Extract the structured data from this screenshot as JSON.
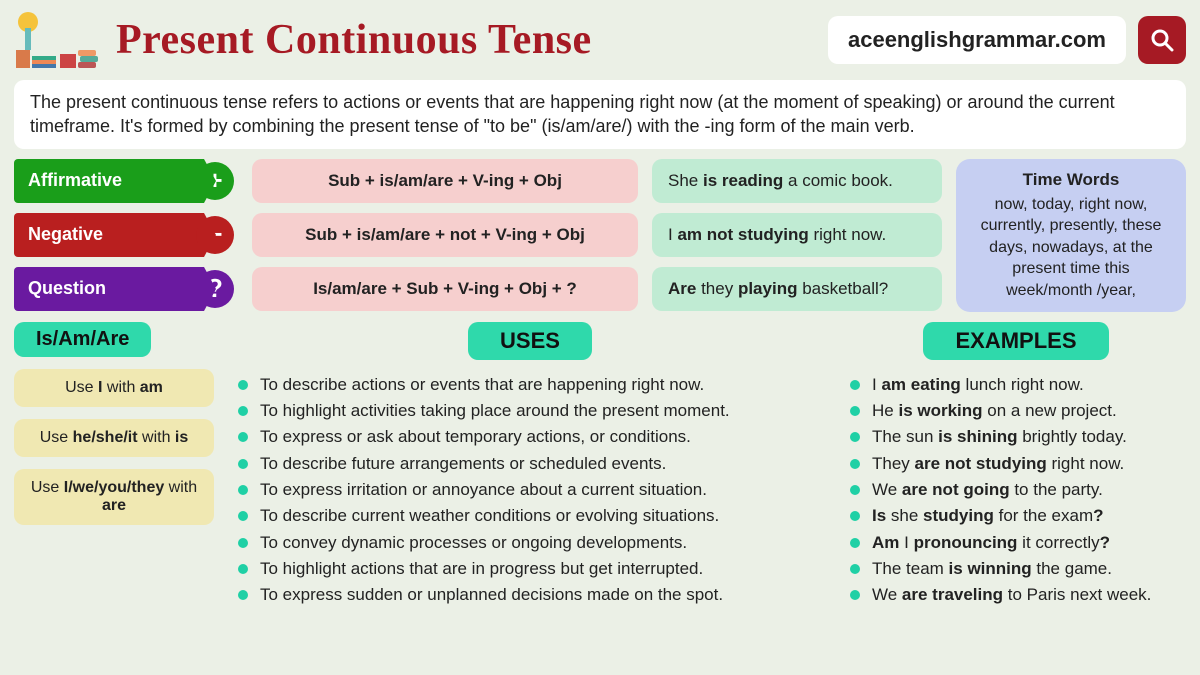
{
  "header": {
    "title": "Present Continuous Tense",
    "title_color": "#a61a24",
    "site": "aceenglishgrammar.com",
    "search_bg": "#a61a24"
  },
  "description": "The present continuous tense refers to actions or events that are happening right now (at the moment of speaking) or around the current timeframe. It's formed by combining the present tense of \"to be\" (is/am/are/) with the -ing form of the main verb.",
  "rows": {
    "affirmative": {
      "label": "Affirmative",
      "symbol": "+",
      "color": "#1a9e1a",
      "formula": "Sub + is/am/are + V-ing + Obj",
      "example_pre": "She ",
      "example_bold": "is reading",
      "example_post": " a comic book."
    },
    "negative": {
      "label": "Negative",
      "symbol": "−",
      "color": "#b91f1f",
      "formula": "Sub + is/am/are + not + V-ing + Obj",
      "example_pre": "I ",
      "example_bold": "am not studying",
      "example_post": " right now."
    },
    "question": {
      "label": "Question",
      "symbol": "?",
      "color": "#6a1aa0",
      "formula": "Is/am/are + Sub + V-ing + Obj + ?",
      "example_pre": "",
      "example_bold1": "Are",
      "example_mid": " they ",
      "example_bold2": "playing",
      "example_post": " basketball?"
    }
  },
  "timewords": {
    "title": "Time Words",
    "body": "now, today, right now, currently, presently, these days, nowadays, at the present time this week/month /year,"
  },
  "pills": {
    "isamare": "Is/Am/Are",
    "uses": "USES",
    "examples": "EXAMPLES"
  },
  "usage": {
    "u1_a": "Use ",
    "u1_b": "I",
    "u1_c": " with ",
    "u1_d": "am",
    "u2_a": "Use ",
    "u2_b": "he/she/it",
    "u2_c": " with ",
    "u2_d": "is",
    "u3_a": "Use ",
    "u3_b": "I/we/you/they",
    "u3_c": " with ",
    "u3_d": "are"
  },
  "uses": [
    "To describe actions or events that are happening right now.",
    "To highlight activities taking place around the present moment.",
    "To express or ask about temporary actions, or conditions.",
    "To describe future arrangements or scheduled events.",
    "To express irritation or annoyance about a current situation.",
    "To describe current weather conditions or evolving situations.",
    "To convey dynamic processes or ongoing developments.",
    "To highlight actions that are in progress but get interrupted.",
    "To express sudden or unplanned decisions made on the spot."
  ],
  "examples": [
    {
      "pre": "I ",
      "b": "am eating",
      "post": " lunch right now."
    },
    {
      "pre": "He ",
      "b": "is working",
      "post": " on a new project."
    },
    {
      "pre": "The sun ",
      "b": "is shining",
      "post": " brightly today."
    },
    {
      "pre": "They ",
      "b": "are not studying",
      "post": " right now."
    },
    {
      "pre": "We ",
      "b": "are not going",
      "post": " to the party."
    },
    {
      "pre": "",
      "b": "Is",
      "mid": " she ",
      "b2": "studying",
      "post": " for the exam",
      "q": "?"
    },
    {
      "pre": "",
      "b": "Am",
      "mid": " I ",
      "b2": "pronouncing",
      "post": " it correctly",
      "q": "?"
    },
    {
      "pre": "The team ",
      "b": "is winning",
      "post": " the game."
    },
    {
      "pre": "We ",
      "b": "are traveling",
      "post": " to Paris next week."
    }
  ],
  "colors": {
    "bg": "#ebf0e6",
    "formula_bg": "#f6cfce",
    "example_bg": "#c0ebd3",
    "timewords_bg": "#c6cff2",
    "pill_bg": "#2fd9ab",
    "usage_bg": "#f0e8b2",
    "bullet": "#1fd0a5"
  }
}
